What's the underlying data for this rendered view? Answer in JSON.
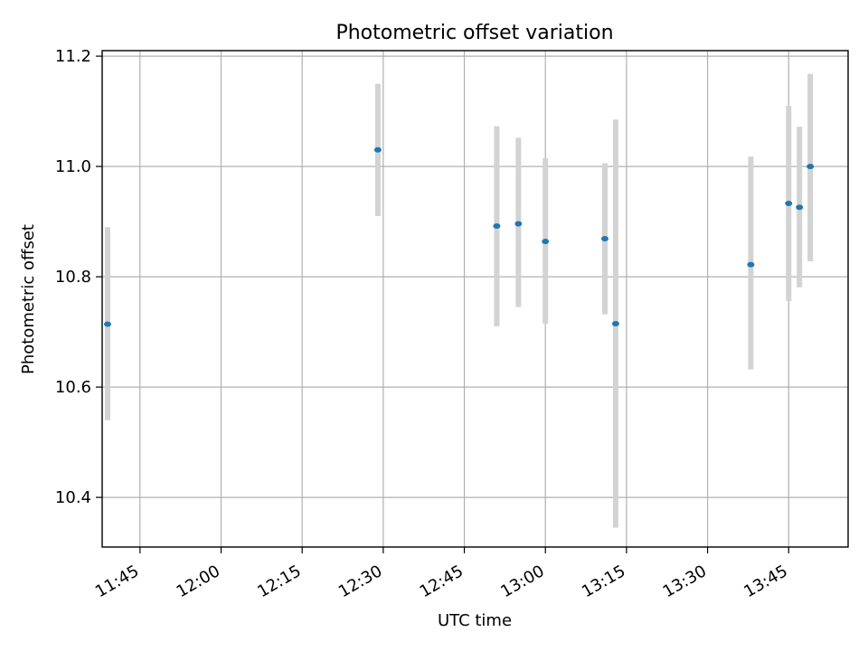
{
  "chart_data": {
    "type": "scatter",
    "title": "Photometric offset variation",
    "xlabel": "UTC time",
    "ylabel": "Photometric offset",
    "grid": true,
    "x_ticks": [
      "11:45",
      "12:00",
      "12:15",
      "12:30",
      "12:45",
      "13:00",
      "13:15",
      "13:30",
      "13:45"
    ],
    "y_ticks": [
      10.4,
      10.6,
      10.8,
      11.0,
      11.2
    ],
    "xlim": [
      "11:38",
      "13:56"
    ],
    "ylim": [
      10.31,
      11.21
    ],
    "colors": {
      "point": "#1f77b4",
      "errorbar": "#d3d3d3",
      "grid": "#b0b0b0"
    },
    "series": [
      {
        "points": [
          {
            "x": "11:39",
            "y": 10.714,
            "yerr_low": 10.54,
            "yerr_high": 10.89
          },
          {
            "x": "12:29",
            "y": 11.03,
            "yerr_low": 10.91,
            "yerr_high": 11.15
          },
          {
            "x": "12:51",
            "y": 10.892,
            "yerr_low": 10.71,
            "yerr_high": 11.073
          },
          {
            "x": "12:55",
            "y": 10.896,
            "yerr_low": 10.745,
            "yerr_high": 11.052
          },
          {
            "x": "13:00",
            "y": 10.864,
            "yerr_low": 10.715,
            "yerr_high": 11.015
          },
          {
            "x": "13:11",
            "y": 10.869,
            "yerr_low": 10.732,
            "yerr_high": 11.006
          },
          {
            "x": "13:13",
            "y": 10.715,
            "yerr_low": 10.345,
            "yerr_high": 11.085
          },
          {
            "x": "13:38",
            "y": 10.822,
            "yerr_low": 10.632,
            "yerr_high": 11.018
          },
          {
            "x": "13:45",
            "y": 10.933,
            "yerr_low": 10.756,
            "yerr_high": 11.11
          },
          {
            "x": "13:47",
            "y": 10.926,
            "yerr_low": 10.781,
            "yerr_high": 11.072
          },
          {
            "x": "13:49",
            "y": 11.0,
            "yerr_low": 10.828,
            "yerr_high": 11.168
          }
        ]
      }
    ]
  }
}
